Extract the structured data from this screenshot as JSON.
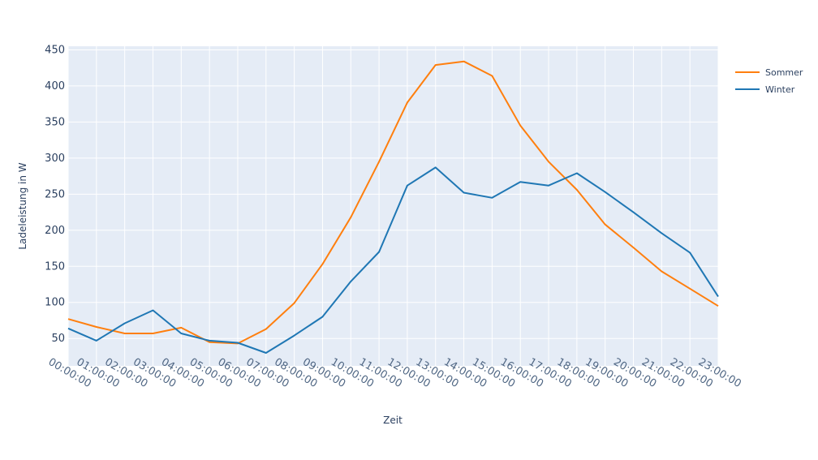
{
  "chart_data": {
    "type": "line",
    "x": [
      "00:00:00",
      "01:00:00",
      "02:00:00",
      "03:00:00",
      "04:00:00",
      "05:00:00",
      "06:00:00",
      "07:00:00",
      "08:00:00",
      "09:00:00",
      "10:00:00",
      "11:00:00",
      "12:00:00",
      "13:00:00",
      "14:00:00",
      "15:00:00",
      "16:00:00",
      "17:00:00",
      "18:00:00",
      "19:00:00",
      "20:00:00",
      "21:00:00",
      "22:00:00",
      "23:00:00"
    ],
    "series": [
      {
        "name": "Sommer",
        "color": "#ff7f0e",
        "values": [
          77,
          66,
          57,
          57,
          65,
          45,
          43,
          63,
          99,
          153,
          218,
          295,
          377,
          429,
          434,
          414,
          345,
          295,
          256,
          208,
          176,
          143,
          119,
          95
        ]
      },
      {
        "name": "Winter",
        "color": "#1f77b4",
        "values": [
          64,
          47,
          71,
          89,
          57,
          47,
          44,
          30,
          54,
          80,
          129,
          170,
          262,
          287,
          252,
          245,
          267,
          262,
          279,
          253,
          225,
          196,
          169,
          108
        ]
      }
    ],
    "title": "",
    "xlabel": "Zeit",
    "ylabel": "Ladeleistung in W",
    "ylim": [
      12,
      455
    ],
    "yticks": [
      50,
      100,
      150,
      200,
      250,
      300,
      350,
      400,
      450
    ],
    "grid": true,
    "legend_position": "top-right",
    "background_color": "#e5ecf6"
  }
}
